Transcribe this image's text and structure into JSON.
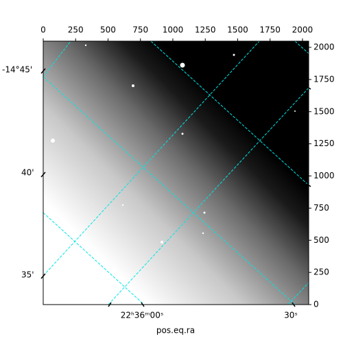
{
  "chart_data": {
    "type": "image",
    "xlim": [
      0,
      2048
    ],
    "ylim": [
      0,
      2048
    ],
    "xticks": [
      0,
      250,
      500,
      750,
      1000,
      1250,
      1500,
      1750,
      2000
    ],
    "yticks": [
      0,
      250,
      500,
      750,
      1000,
      1250,
      1500,
      1750,
      2000
    ],
    "dec_labels": [
      "-14°45'",
      "40'",
      "35'"
    ],
    "ra_labels": [
      "22ʰ36ᵐ00ˢ",
      "30ˢ"
    ],
    "xlabel": "pos.eq.ra",
    "grid_color": "#00e5e5"
  }
}
